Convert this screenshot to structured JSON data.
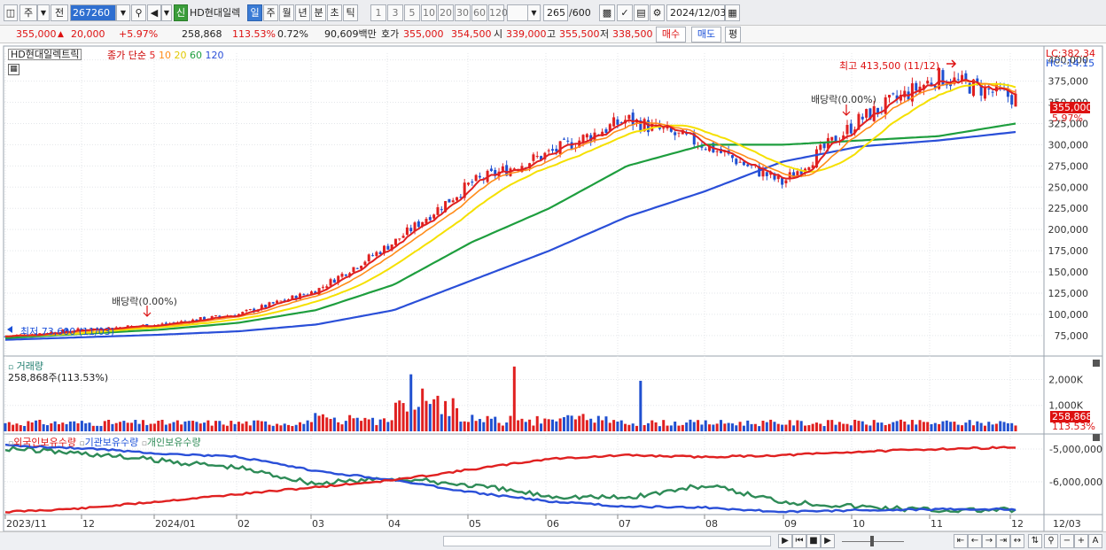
{
  "toolbar": {
    "market": "주",
    "prev": "전",
    "code": "267260",
    "badge": "신",
    "name": "HD현대일렉",
    "periods": [
      "일",
      "주",
      "월",
      "년",
      "분",
      "초",
      "틱"
    ],
    "active_period": "일",
    "intervals": [
      "1",
      "3",
      "5",
      "10",
      "20",
      "30",
      "60",
      "120"
    ],
    "count": "265",
    "count_total": "/600",
    "date": "2024/12/03"
  },
  "quote": {
    "price": "355,000",
    "change": "20,000",
    "change_pct": "+5.97%",
    "volume": "258,868",
    "volume_pct": "113.53%",
    "turnover": "0.72%",
    "amount": "90,609백만",
    "bid_label": "호가",
    "bid1": "355,000",
    "bid2": "354,500",
    "open_label": "시",
    "open": "339,000",
    "high_label": "고",
    "high": "355,500",
    "low_label": "저",
    "low": "338,500",
    "buy_btn": "매수",
    "sell_btn": "매도",
    "eval_btn": "평"
  },
  "price_panel": {
    "legend_name": "HD현대일렉트릭",
    "legend_ma_label": "종가 단순",
    "legend_ma_periods": [
      "5",
      "10",
      "20",
      "60",
      "120"
    ],
    "lc": "LC:382.34",
    "hc": "HC:-14.15",
    "last_price": "355,000",
    "last_pct": "5.97%",
    "high_note": "최고 413,500 (11/12)",
    "low_note": "최저 73,600 (11/03)",
    "dividend1": "배당락(0.00%)",
    "dividend2": "배당락(0.00%)"
  },
  "volume_panel": {
    "title": "거래량",
    "value": "258,868주(113.53%)",
    "last_value": "258,868",
    "last_pct": "113.53%"
  },
  "holdings_panel": {
    "legend": [
      "외국인보유수량",
      "기관보유수량",
      "개인보유수량"
    ]
  },
  "x_axis": {
    "labels": [
      "2023/11",
      "12",
      "2024/01",
      "02",
      "03",
      "04",
      "05",
      "06",
      "07",
      "08",
      "09",
      "10",
      "11",
      "12"
    ],
    "right_label": "12/03"
  },
  "colors": {
    "up": "#e02020",
    "down": "#2050d0",
    "ma5": "#e02020",
    "ma10": "#ff8c1a",
    "ma20": "#f5e000",
    "ma60": "#1e9e3e",
    "ma120": "#2a4fd8",
    "foreign": "#e02020",
    "institution": "#2a4fd8",
    "individual": "#2e8b57"
  },
  "chart_data": [
    {
      "type": "candlestick",
      "title": "HD현대일렉트릭",
      "x": [
        "2023/11",
        "12",
        "2024/01",
        "02",
        "03",
        "04",
        "05",
        "06",
        "07",
        "08",
        "09",
        "10",
        "11",
        "12"
      ],
      "close": [
        74000,
        82000,
        88000,
        100000,
        128000,
        185000,
        255000,
        290000,
        330000,
        300000,
        255000,
        330000,
        380000,
        355000
      ],
      "y_ticks": [
        "400,000",
        "375,000",
        "350,000",
        "325,000",
        "300,000",
        "275,000",
        "250,000",
        "225,000",
        "200,000",
        "175,000",
        "150,000",
        "125,000",
        "100,000",
        "75,000"
      ],
      "ylim": [
        55000,
        408000
      ],
      "series": [
        {
          "name": "5",
          "color": "ma5"
        },
        {
          "name": "10",
          "color": "ma10"
        },
        {
          "name": "20",
          "color": "ma20"
        },
        {
          "name": "60",
          "color": "ma60",
          "values": [
            72000,
            77000,
            82000,
            90000,
            105000,
            135000,
            185000,
            225000,
            275000,
            300000,
            300000,
            305000,
            310000,
            325000
          ]
        },
        {
          "name": "120",
          "color": "ma120",
          "values": [
            70000,
            73000,
            76000,
            80000,
            88000,
            105000,
            140000,
            175000,
            215000,
            245000,
            280000,
            298000,
            305000,
            315000
          ]
        }
      ]
    },
    {
      "type": "bar",
      "title": "거래량",
      "y_ticks": [
        "2,000K",
        "1,000K"
      ],
      "ylim": [
        0,
        2700000
      ]
    },
    {
      "type": "line",
      "y_ticks": [
        "-5,000,000",
        "-6,000,000"
      ],
      "series": [
        {
          "name": "외국인보유수량"
        },
        {
          "name": "기관보유수량"
        },
        {
          "name": "개인보유수량"
        }
      ]
    }
  ]
}
